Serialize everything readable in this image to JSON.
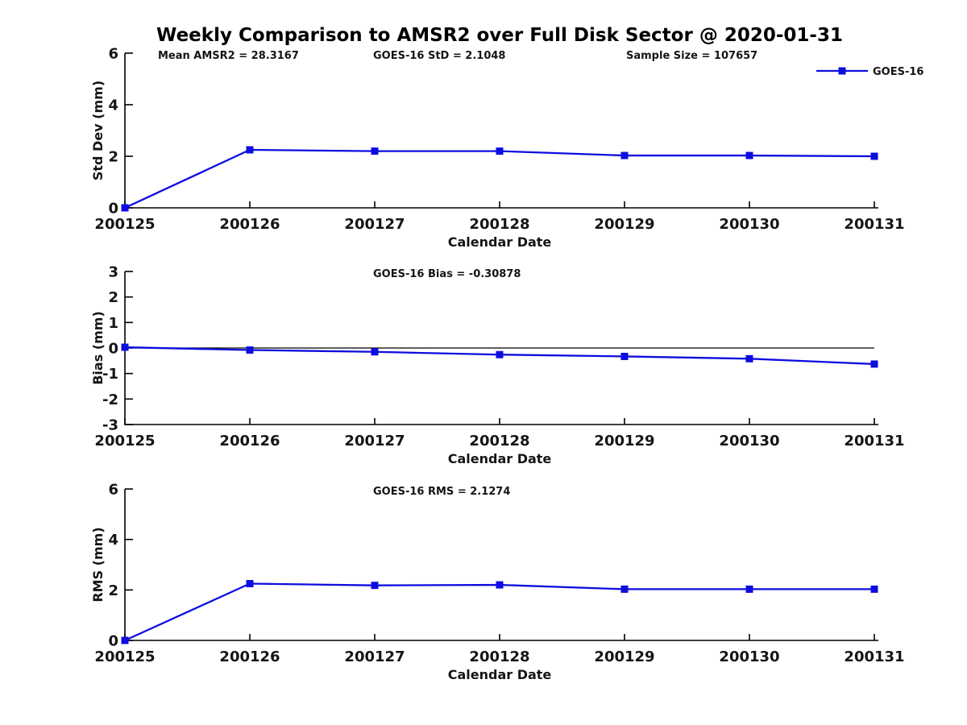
{
  "title": "Weekly Comparison to AMSR2 over Full Disk Sector @ 2020-01-31",
  "accent_color": "#0d0de0",
  "text_color": "#151515",
  "chart_data": [
    {
      "type": "line",
      "name": "std-dev-panel",
      "categories": [
        "200125",
        "200126",
        "200127",
        "200128",
        "200129",
        "200130",
        "200131"
      ],
      "series": [
        {
          "name": "GOES-16",
          "color": "#0d0de0",
          "marker": "square",
          "values": [
            0.0,
            2.25,
            2.2,
            2.2,
            2.03,
            2.03,
            2.0
          ]
        }
      ],
      "xlabel": "Calendar Date",
      "ylabel": "Std Dev (mm)",
      "ylim": [
        0,
        6
      ],
      "yticks": [
        0,
        2,
        4,
        6
      ],
      "grid": false,
      "zero_line": false,
      "legend": {
        "visible": true,
        "position": "top-right",
        "entries": [
          "GOES-16"
        ]
      },
      "annotations": [
        {
          "text": "Mean AMSR2 = 28.3167",
          "x": 196
        },
        {
          "text": "GOES-16 StD = 2.1048",
          "x": 463
        },
        {
          "text": "Sample Size = 107657",
          "x": 777
        }
      ]
    },
    {
      "type": "line",
      "name": "bias-panel",
      "categories": [
        "200125",
        "200126",
        "200127",
        "200128",
        "200129",
        "200130",
        "200131"
      ],
      "series": [
        {
          "name": "GOES-16",
          "color": "#0d0de0",
          "marker": "square",
          "values": [
            0.03,
            -0.08,
            -0.15,
            -0.26,
            -0.33,
            -0.42,
            -0.63
          ]
        }
      ],
      "xlabel": "Calendar Date",
      "ylabel": "Bias (mm)",
      "ylim": [
        -3,
        3
      ],
      "yticks": [
        3,
        2,
        1,
        0,
        -1,
        -2,
        -3
      ],
      "grid": false,
      "zero_line": true,
      "legend": {
        "visible": false
      },
      "annotations": [
        {
          "text": "GOES-16 Bias  = -0.30878",
          "x": 463
        }
      ]
    },
    {
      "type": "line",
      "name": "rms-panel",
      "categories": [
        "200125",
        "200126",
        "200127",
        "200128",
        "200129",
        "200130",
        "200131"
      ],
      "series": [
        {
          "name": "GOES-16",
          "color": "#0d0de0",
          "marker": "square",
          "values": [
            0.0,
            2.25,
            2.18,
            2.2,
            2.03,
            2.03,
            2.03
          ]
        }
      ],
      "xlabel": "Calendar Date",
      "ylabel": "RMS (mm)",
      "ylim": [
        0,
        6
      ],
      "yticks": [
        0,
        2,
        4,
        6
      ],
      "grid": false,
      "zero_line": false,
      "legend": {
        "visible": false
      },
      "annotations": [
        {
          "text": "GOES-16 RMS = 2.1274",
          "x": 463
        }
      ]
    }
  ]
}
